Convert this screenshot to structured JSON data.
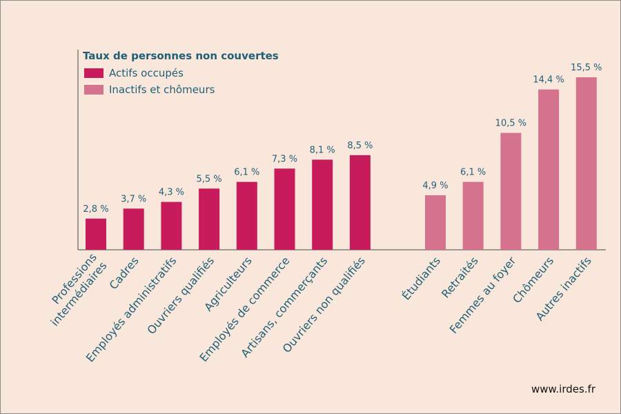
{
  "chart_data": {
    "type": "bar",
    "legend_title": "Taux de personnes non couvertes",
    "legend_placement": "top-left",
    "value_suffix": " %",
    "ylim": [
      0,
      16
    ],
    "grid": false,
    "series": [
      {
        "name": "Actifs occupés",
        "color": "#c71b5b",
        "categories": [
          [
            "Professions",
            "intermédiaires"
          ],
          [
            "Cadres"
          ],
          [
            "Employés administratifs"
          ],
          [
            "Ouvriers qualifiés"
          ],
          [
            "Agriculteurs"
          ],
          [
            "Employés de commerce"
          ],
          [
            "Artisans, commerçants"
          ],
          [
            "Ouvriers non qualifiés"
          ]
        ],
        "values": [
          2.8,
          3.7,
          4.3,
          5.5,
          6.1,
          7.3,
          8.1,
          8.5
        ],
        "labels": [
          "2,8 %",
          "3,7 %",
          "4,3 %",
          "5,5 %",
          "6,1 %",
          "7,3 %",
          "8,1 %",
          "8,5 %"
        ]
      },
      {
        "name": "Inactifs et chômeurs",
        "color": "#d5738f",
        "categories": [
          [
            "Étudiants"
          ],
          [
            "Retraités"
          ],
          [
            "Femmes au foyer"
          ],
          [
            "Chômeurs"
          ],
          [
            "Autres inactifs"
          ]
        ],
        "values": [
          4.9,
          6.1,
          10.5,
          14.4,
          15.5
        ],
        "labels": [
          "4,9 %",
          "6,1 %",
          "10,5 %",
          "14,4 %",
          "15,5 %"
        ]
      }
    ]
  },
  "footer": {
    "source": "www.irdes.fr"
  }
}
